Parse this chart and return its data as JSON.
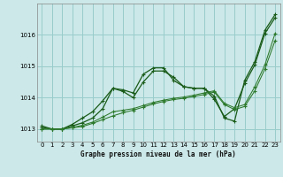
{
  "title": "Graphe pression niveau de la mer (hPa)",
  "background_color": "#cce8e8",
  "grid_color": "#99cccc",
  "line_color_dark": "#1a5c1a",
  "line_color_mid": "#2d7a2d",
  "xlim": [
    -0.5,
    23.5
  ],
  "ylim": [
    1012.6,
    1017.0
  ],
  "yticks": [
    1013,
    1014,
    1015,
    1016
  ],
  "xticks": [
    0,
    1,
    2,
    3,
    4,
    5,
    6,
    7,
    8,
    9,
    10,
    11,
    12,
    13,
    14,
    15,
    16,
    17,
    18,
    19,
    20,
    21,
    22,
    23
  ],
  "series": [
    [
      1013.1,
      1013.0,
      1013.0,
      1013.15,
      1013.35,
      1013.55,
      1013.9,
      1014.3,
      1014.25,
      1014.15,
      1014.75,
      1014.95,
      1014.95,
      1014.55,
      1014.35,
      1014.3,
      1014.3,
      1014.05,
      1013.35,
      1013.25,
      1014.55,
      1015.15,
      1016.15,
      1016.65
    ],
    [
      1013.05,
      1013.0,
      1013.0,
      1013.1,
      1013.2,
      1013.35,
      1013.65,
      1014.3,
      1014.2,
      1014.0,
      1014.5,
      1014.85,
      1014.85,
      1014.65,
      1014.35,
      1014.3,
      1014.3,
      1013.95,
      1013.4,
      1013.65,
      1014.45,
      1015.05,
      1016.05,
      1016.55
    ],
    [
      1013.0,
      1013.0,
      1013.0,
      1013.05,
      1013.12,
      1013.22,
      1013.38,
      1013.55,
      1013.6,
      1013.65,
      1013.75,
      1013.85,
      1013.92,
      1013.98,
      1014.02,
      1014.08,
      1014.15,
      1014.22,
      1013.82,
      1013.68,
      1013.78,
      1014.35,
      1015.05,
      1016.05
    ],
    [
      1013.0,
      1013.0,
      1013.0,
      1013.04,
      1013.08,
      1013.18,
      1013.3,
      1013.42,
      1013.52,
      1013.6,
      1013.7,
      1013.8,
      1013.88,
      1013.94,
      1013.98,
      1014.04,
      1014.1,
      1014.18,
      1013.78,
      1013.62,
      1013.72,
      1014.22,
      1014.92,
      1015.82
    ]
  ]
}
